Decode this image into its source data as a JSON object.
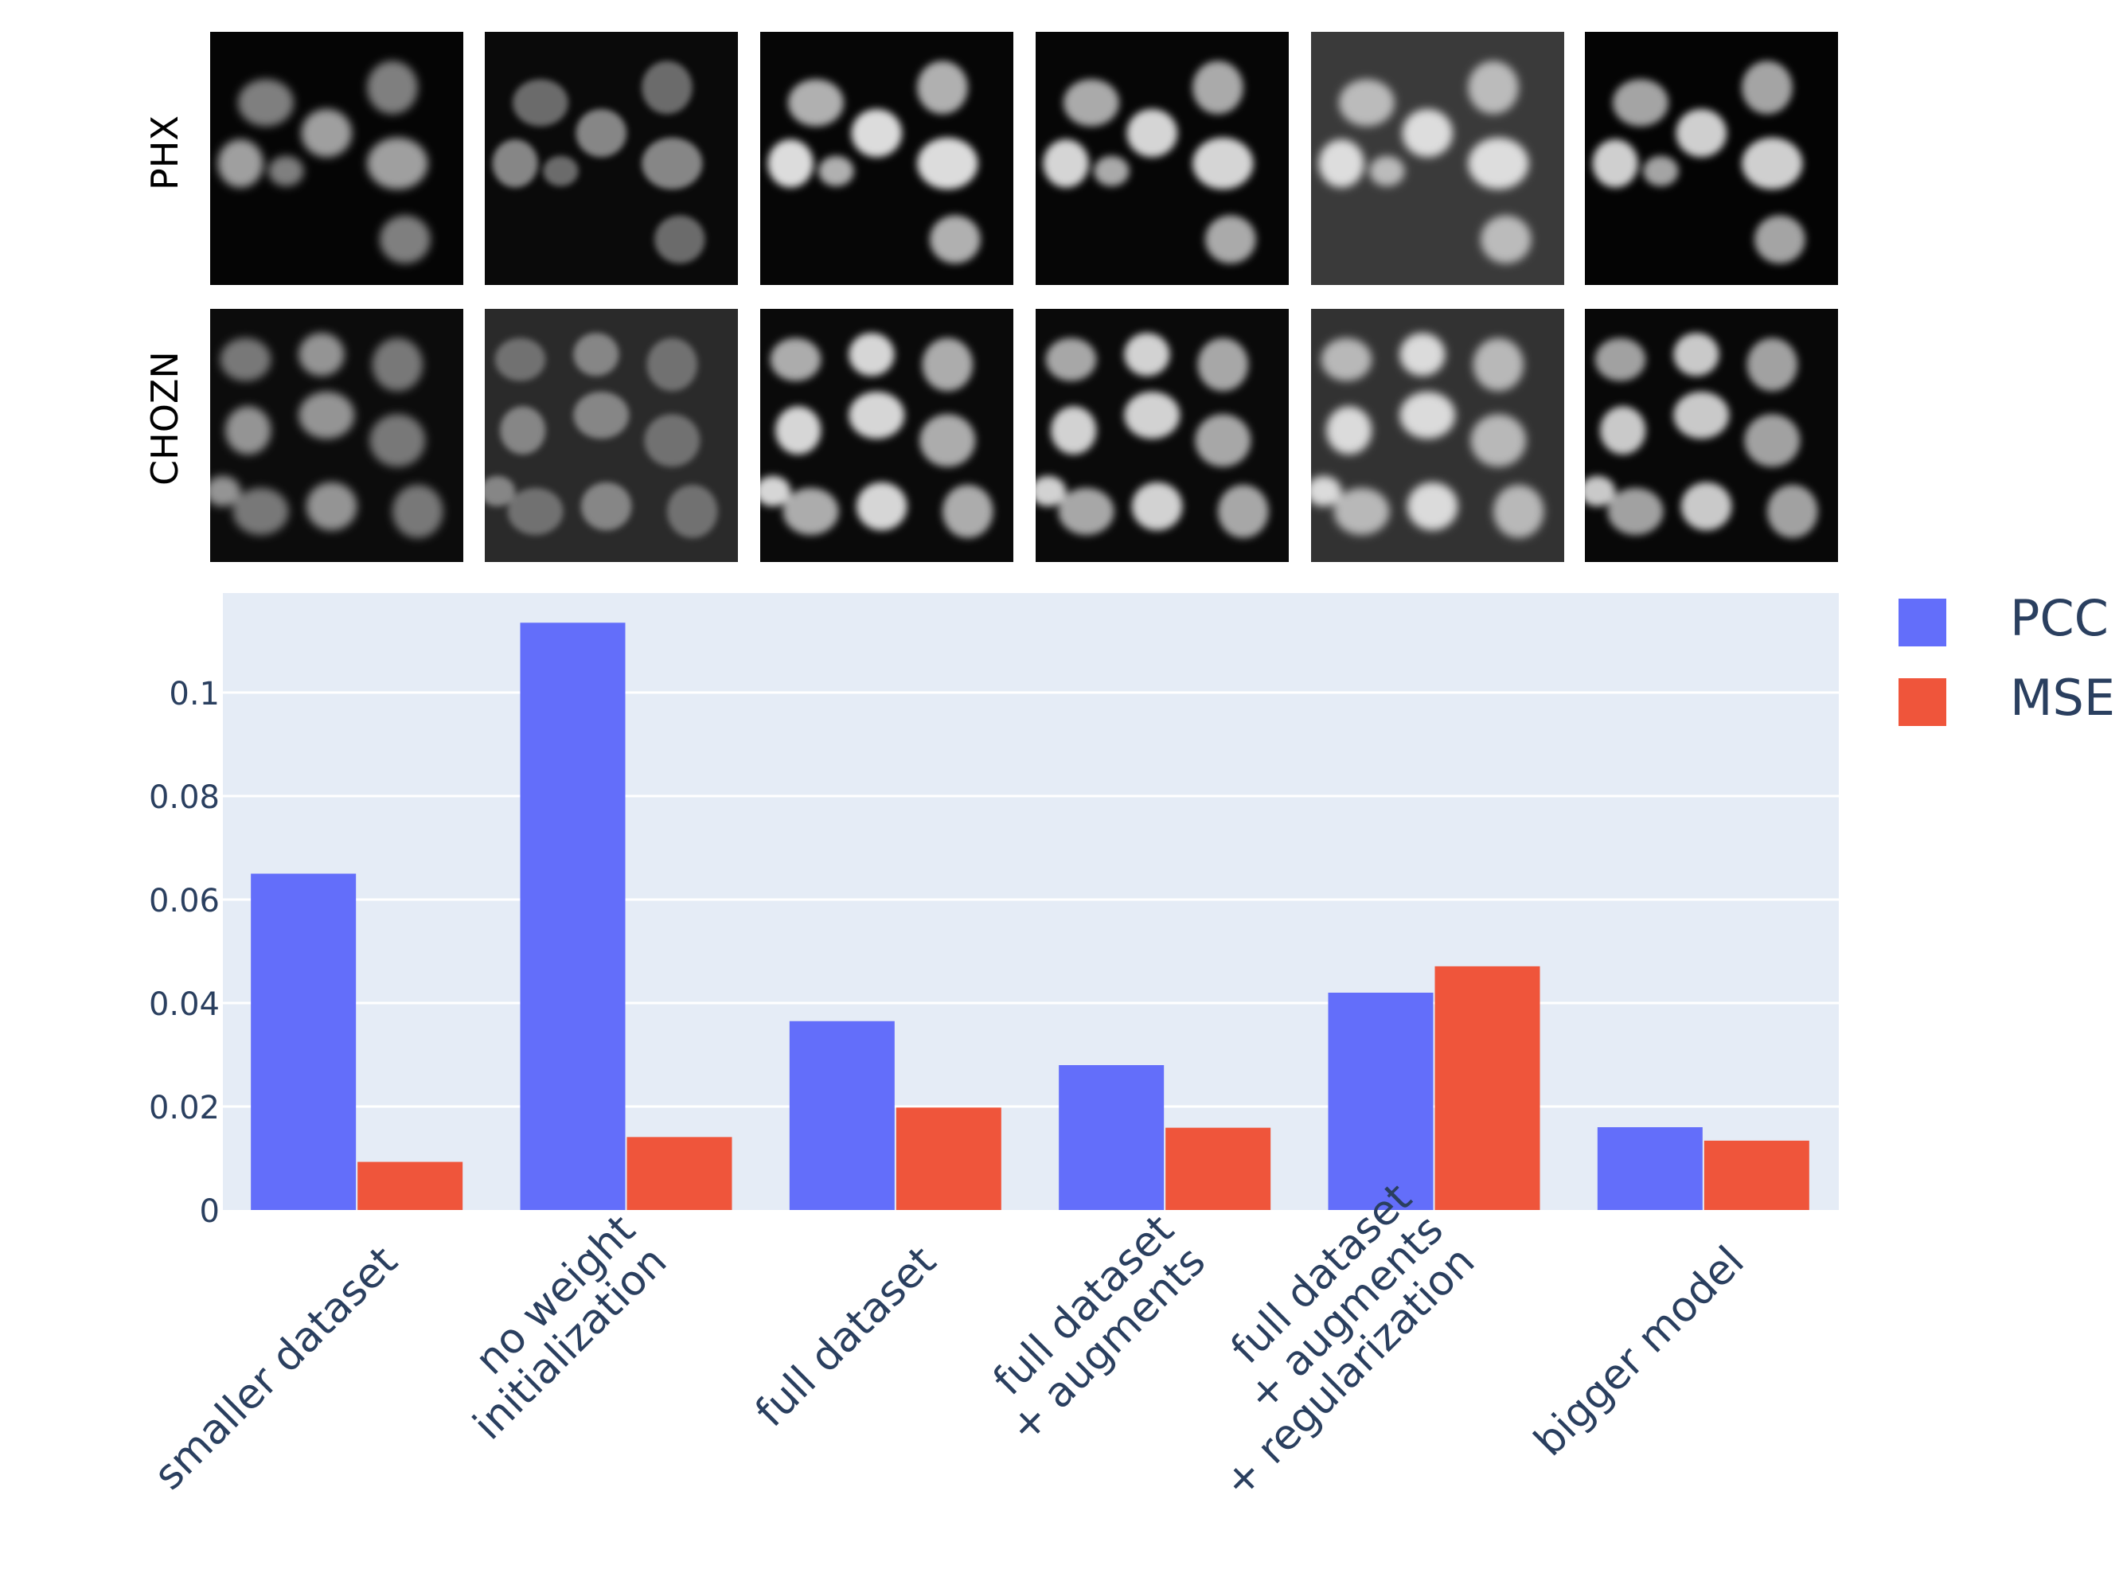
{
  "image_rows": [
    {
      "label": "PHX",
      "panels": [
        {
          "bg": "#050505",
          "fg": "#a8a8a8",
          "blur": 7
        },
        {
          "bg": "#0a0a0a",
          "fg": "#8c8c8c",
          "blur": 5
        },
        {
          "bg": "#060606",
          "fg": "#e8e8e8",
          "blur": 6
        },
        {
          "bg": "#060606",
          "fg": "#e0e0e0",
          "blur": 6
        },
        {
          "bg": "#3a3a3a",
          "fg": "#e6e6e6",
          "blur": 7
        },
        {
          "bg": "#040404",
          "fg": "#dadada",
          "blur": 6
        }
      ]
    },
    {
      "label": "CHOZN",
      "panels": [
        {
          "bg": "#0c0c0c",
          "fg": "#9c9c9c",
          "blur": 7
        },
        {
          "bg": "#2a2a2a",
          "fg": "#8a8a8a",
          "blur": 5
        },
        {
          "bg": "#0a0a0a",
          "fg": "#e2e2e2",
          "blur": 6
        },
        {
          "bg": "#0a0a0a",
          "fg": "#dcdcdc",
          "blur": 6
        },
        {
          "bg": "#323232",
          "fg": "#e4e4e4",
          "blur": 7
        },
        {
          "bg": "#080808",
          "fg": "#d4d4d4",
          "blur": 6
        }
      ]
    }
  ],
  "chart_data": {
    "type": "bar",
    "categories": [
      [
        "smaller dataset"
      ],
      [
        "no weight",
        "initialization"
      ],
      [
        "full dataset"
      ],
      [
        "full dataset",
        "+ augments"
      ],
      [
        "full dataset",
        "+ augments",
        "+ regularization"
      ],
      [
        "bigger model"
      ]
    ],
    "series": [
      {
        "name": "PCC",
        "color": "#636efa",
        "values": [
          0.065,
          0.1135,
          0.0365,
          0.028,
          0.042,
          0.016
        ]
      },
      {
        "name": "MSE",
        "color": "#ef553b",
        "values": [
          0.0093,
          0.0141,
          0.0198,
          0.0159,
          0.0471,
          0.0134
        ]
      }
    ],
    "ylim": [
      0,
      0.1175
    ],
    "yticks": [
      {
        "value": 0,
        "label": "0"
      },
      {
        "value": 0.02,
        "label": "0.02"
      },
      {
        "value": 0.04,
        "label": "0.04"
      },
      {
        "value": 0.06,
        "label": "0.06"
      },
      {
        "value": 0.08,
        "label": "0.08"
      },
      {
        "value": 0.1,
        "label": "0.1"
      }
    ],
    "grid": true,
    "plot_bg": "#e5ecf6",
    "legend_position": "top-right",
    "xlabel": "",
    "ylabel": "",
    "title": ""
  }
}
